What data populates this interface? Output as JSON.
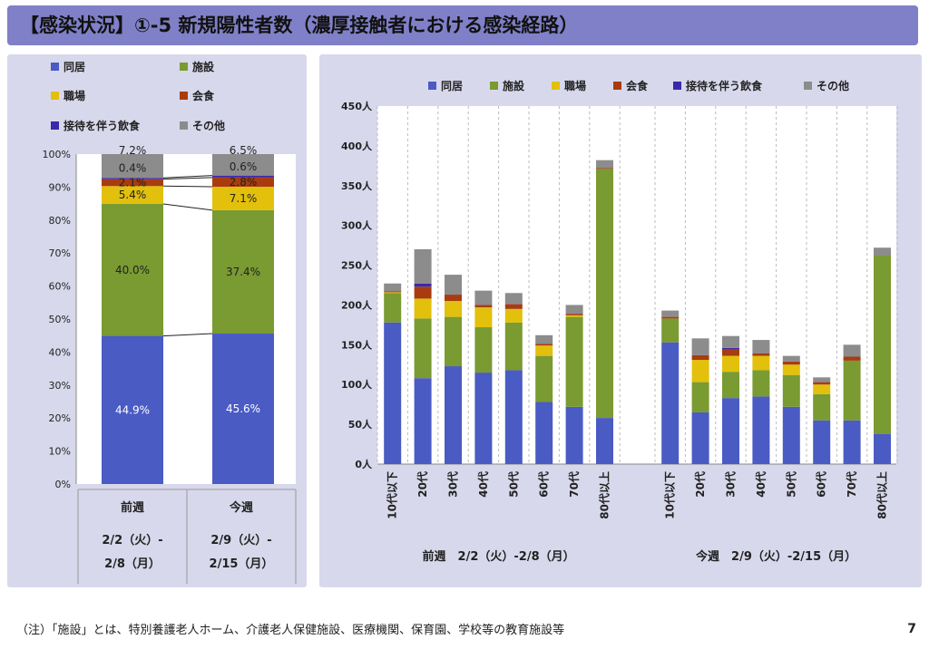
{
  "title": "【感染状況】①-5 新規陽性者数（濃厚接触者における感染経路）",
  "footnote": "（注）「施設」とは、特別養護老人ホーム、介護老人保健施設、医療機関、保育園、学校等の教育施設等",
  "page_number": "7",
  "categories_legend": [
    {
      "name": "同居",
      "color": "#4a5bc4"
    },
    {
      "name": "施設",
      "color": "#7a9a32"
    },
    {
      "name": "職場",
      "color": "#e2c00c"
    },
    {
      "name": "会食",
      "color": "#a83c10"
    },
    {
      "name": "接待を伴う飲食",
      "color": "#3c28a8"
    },
    {
      "name": "その他",
      "color": "#8c8c8c"
    }
  ],
  "chart_data": [
    {
      "type": "bar",
      "stacked": "percent",
      "categories": [
        "前週",
        "今週"
      ],
      "period_labels": [
        [
          "2/2（火）-",
          "2/8（月）"
        ],
        [
          "2/9（火）-",
          "2/15（月）"
        ]
      ],
      "yticks": [
        "0%",
        "10%",
        "20%",
        "30%",
        "40%",
        "50%",
        "60%",
        "70%",
        "80%",
        "90%",
        "100%"
      ],
      "ylim": [
        0,
        100
      ],
      "legend_position": "top",
      "series": [
        {
          "name": "同居",
          "values": [
            44.9,
            45.6
          ],
          "labels": [
            "44.9%",
            "45.6%"
          ]
        },
        {
          "name": "施設",
          "values": [
            40.0,
            37.4
          ],
          "labels": [
            "40.0%",
            "37.4%"
          ]
        },
        {
          "name": "職場",
          "values": [
            5.4,
            7.1
          ],
          "labels": [
            "5.4%",
            "7.1%"
          ]
        },
        {
          "name": "会食",
          "values": [
            2.1,
            2.8
          ],
          "labels": [
            "2.1%",
            "2.8%"
          ]
        },
        {
          "name": "接待を伴う飲食",
          "values": [
            0.4,
            0.6
          ],
          "labels": [
            "0.4%",
            "0.6%"
          ]
        },
        {
          "name": "その他",
          "values": [
            7.2,
            6.5
          ],
          "labels": [
            "7.2%",
            "6.5%"
          ]
        }
      ]
    },
    {
      "type": "bar",
      "stacked": "count",
      "groups": [
        {
          "label": "前週　2/2（火）-2/8（月）",
          "categories": [
            "10代以下",
            "20代",
            "30代",
            "40代",
            "50代",
            "60代",
            "70代",
            "80代以上"
          ]
        },
        {
          "label": "今週　2/9（火）-2/15（月）",
          "categories": [
            "10代以下",
            "20代",
            "30代",
            "40代",
            "50代",
            "60代",
            "70代",
            "80代以上"
          ]
        }
      ],
      "yticks": [
        "0人",
        "50人",
        "100人",
        "150人",
        "200人",
        "250人",
        "300人",
        "350人",
        "400人",
        "450人"
      ],
      "ylim": [
        0,
        450
      ],
      "legend_position": "top",
      "series": [
        {
          "name": "同居",
          "values": [
            [
              178,
              108,
              123,
              115,
              118,
              78,
              72,
              58
            ],
            [
              153,
              65,
              83,
              85,
              72,
              55,
              55,
              38
            ]
          ]
        },
        {
          "name": "施設",
          "values": [
            [
              37,
              75,
              62,
              57,
              60,
              58,
              113,
              313
            ],
            [
              30,
              38,
              33,
              33,
              40,
              33,
              75,
              224
            ]
          ]
        },
        {
          "name": "職場",
          "values": [
            [
              1,
              25,
              20,
              25,
              17,
              13,
              2,
              0
            ],
            [
              0,
              28,
              20,
              18,
              13,
              12,
              0,
              0
            ]
          ]
        },
        {
          "name": "会食",
          "values": [
            [
              1,
              15,
              8,
              3,
              6,
              2,
              2,
              1
            ],
            [
              2,
              6,
              8,
              3,
              4,
              3,
              5,
              0
            ]
          ]
        },
        {
          "name": "接待を伴う飲食",
          "values": [
            [
              0,
              4,
              0,
              0,
              0,
              0,
              0,
              0
            ],
            [
              0,
              0,
              2,
              0,
              0,
              0,
              0,
              0
            ]
          ]
        },
        {
          "name": "その他",
          "values": [
            [
              10,
              43,
              25,
              18,
              14,
              11,
              11,
              10
            ],
            [
              8,
              21,
              15,
              17,
              7,
              6,
              15,
              10
            ]
          ]
        }
      ]
    }
  ]
}
